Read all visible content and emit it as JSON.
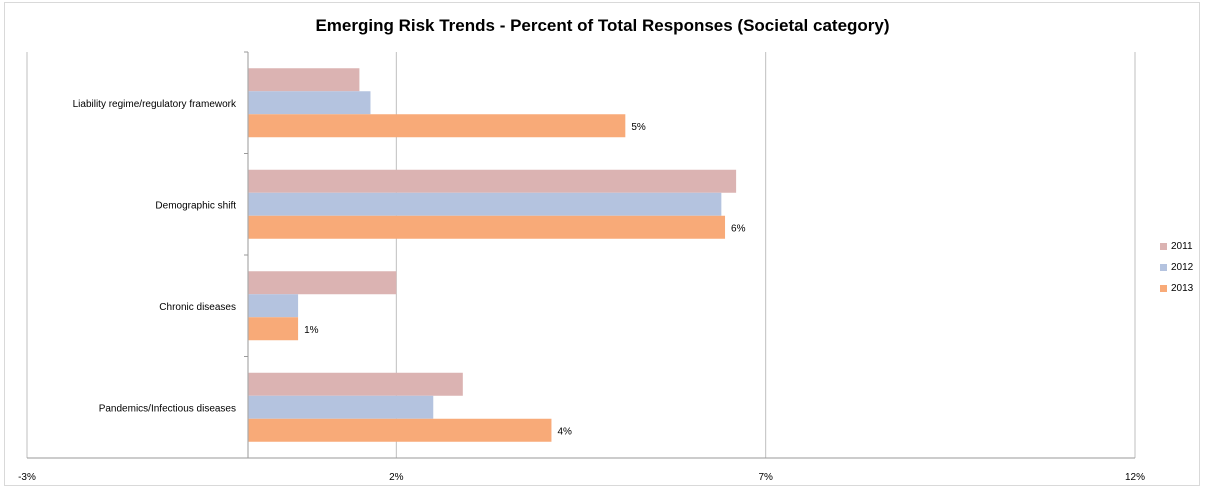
{
  "chart_data": {
    "type": "bar",
    "orientation": "horizontal",
    "title": "Emerging Risk Trends - Percent of Total Responses (Societal category)",
    "categories": [
      "Liability regime/regulatory framework",
      "Demographic shift",
      "Chronic diseases",
      "Pandemics/Infectious diseases"
    ],
    "series": [
      {
        "name": "2011",
        "color": "#dbb3b2",
        "values": [
          1.5,
          6.6,
          2.0,
          2.9
        ]
      },
      {
        "name": "2012",
        "color": "#b4c3df",
        "values": [
          1.65,
          6.4,
          0.67,
          2.5
        ]
      },
      {
        "name": "2013",
        "color": "#f8aa78",
        "values": [
          5.1,
          6.45,
          0.67,
          4.1
        ]
      }
    ],
    "data_labels": [
      "5%",
      "6%",
      "1%",
      "4%"
    ],
    "xlim": [
      -3,
      12
    ],
    "x_ticks": [
      -3,
      2,
      7,
      12
    ],
    "x_tick_labels": [
      "-3%",
      "2%",
      "7%",
      "12%"
    ],
    "grid": true,
    "legend_position": "right"
  }
}
